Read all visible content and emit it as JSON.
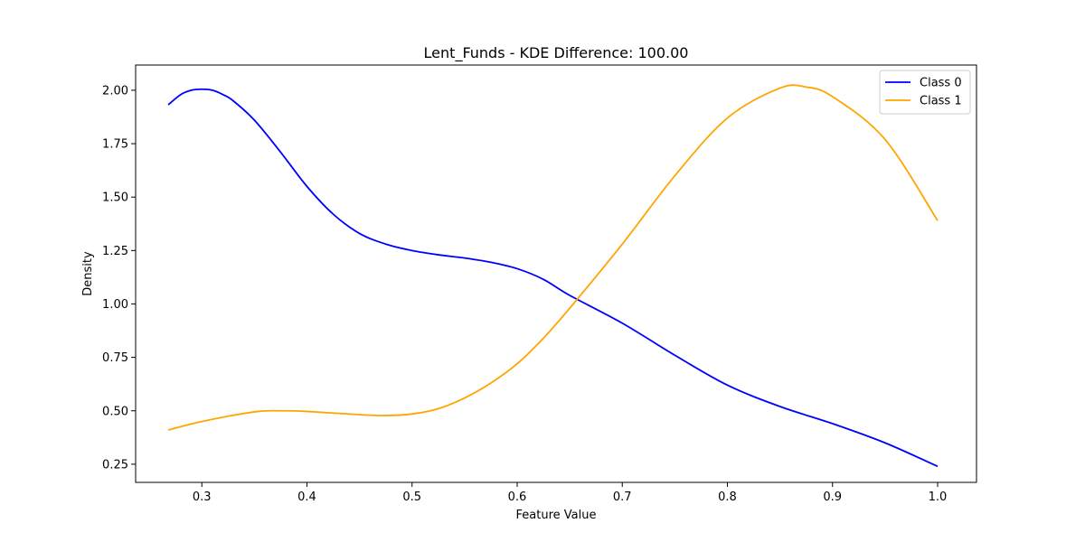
{
  "chart_data": {
    "type": "line",
    "title": "Lent_Funds - KDE Difference: 100.00",
    "xlabel": "Feature Value",
    "ylabel": "Density",
    "xlim": [
      0.237,
      1.037
    ],
    "ylim": [
      0.165,
      2.118
    ],
    "xticks": [
      0.3,
      0.4,
      0.5,
      0.6,
      0.7,
      0.8,
      0.9,
      1.0
    ],
    "xtick_labels": [
      "0.3",
      "0.4",
      "0.5",
      "0.6",
      "0.7",
      "0.8",
      "0.9",
      "1.0"
    ],
    "yticks": [
      0.25,
      0.5,
      0.75,
      1.0,
      1.25,
      1.5,
      1.75,
      2.0
    ],
    "ytick_labels": [
      "0.25",
      "0.50",
      "0.75",
      "1.00",
      "1.25",
      "1.50",
      "1.75",
      "2.00"
    ],
    "grid": false,
    "legend": "top-right",
    "series": [
      {
        "name": "Class 0",
        "color": "#0000ff",
        "x": [
          0.268,
          0.28,
          0.29,
          0.3,
          0.31,
          0.32,
          0.33,
          0.35,
          0.375,
          0.4,
          0.425,
          0.45,
          0.475,
          0.5,
          0.525,
          0.55,
          0.575,
          0.6,
          0.625,
          0.65,
          0.7,
          0.75,
          0.8,
          0.85,
          0.9,
          0.95,
          1.0
        ],
        "y": [
          1.932,
          1.98,
          2.0,
          2.005,
          2.0,
          1.98,
          1.95,
          1.86,
          1.71,
          1.55,
          1.42,
          1.33,
          1.28,
          1.25,
          1.23,
          1.215,
          1.195,
          1.165,
          1.115,
          1.04,
          0.91,
          0.76,
          0.62,
          0.52,
          0.44,
          0.35,
          0.24
        ]
      },
      {
        "name": "Class 1",
        "color": "#ffa500",
        "x": [
          0.268,
          0.3,
          0.35,
          0.375,
          0.4,
          0.45,
          0.475,
          0.5,
          0.525,
          0.55,
          0.575,
          0.6,
          0.625,
          0.65,
          0.7,
          0.75,
          0.8,
          0.85,
          0.875,
          0.9,
          0.95,
          1.0
        ],
        "y": [
          0.41,
          0.45,
          0.495,
          0.5,
          0.497,
          0.482,
          0.478,
          0.485,
          0.51,
          0.56,
          0.63,
          0.72,
          0.84,
          0.98,
          1.28,
          1.6,
          1.87,
          2.01,
          2.015,
          1.97,
          1.77,
          1.39
        ]
      }
    ]
  }
}
